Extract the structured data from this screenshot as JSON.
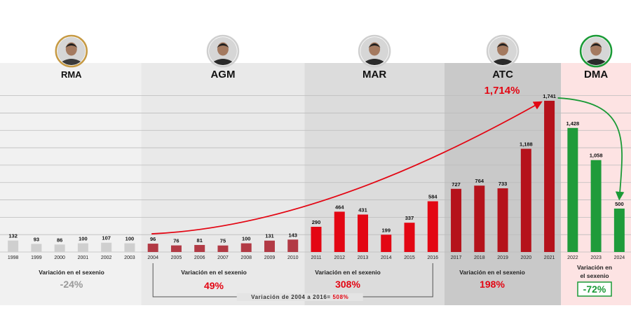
{
  "chart_data": {
    "type": "bar",
    "categories": [
      "1998",
      "1999",
      "2000",
      "2001",
      "2002",
      "2003",
      "2004",
      "2005",
      "2006",
      "2007",
      "2008",
      "2009",
      "2010",
      "2011",
      "2012",
      "2013",
      "2014",
      "2015",
      "2016",
      "2017",
      "2018",
      "2019",
      "2020",
      "2021",
      "2022",
      "2023",
      "2024"
    ],
    "values": [
      132,
      93,
      86,
      100,
      107,
      100,
      96,
      76,
      81,
      75,
      100,
      131,
      143,
      290,
      464,
      431,
      199,
      337,
      584,
      727,
      764,
      733,
      1188,
      1741,
      1428,
      1058,
      500
    ],
    "value_labels": [
      "132",
      "93",
      "86",
      "100",
      "107",
      "100",
      "96",
      "76",
      "81",
      "75",
      "100",
      "131",
      "143",
      "290",
      "464",
      "431",
      "199",
      "337",
      "584",
      "727",
      "764",
      "733",
      "1,188",
      "1,741",
      "1,428",
      "1,058",
      "500"
    ],
    "ylim": [
      0,
      1950
    ],
    "grid": true,
    "periods": [
      {
        "name": "RMA",
        "first_year": "1998",
        "last_year": "2003",
        "caption": "Variación en el sexenio",
        "variation": "-24%",
        "variation_color": "#999999",
        "band_color": "#f1f1f1",
        "bar_color": "#cfcfcf"
      },
      {
        "name": "AGM",
        "first_year": "2004",
        "last_year": "2010",
        "caption": "Variación en el sexenio",
        "variation": "49%",
        "variation_color": "#e30613",
        "band_color": "#e9e9e9",
        "bar_color": "#b23a45"
      },
      {
        "name": "MAR",
        "first_year": "2011",
        "last_year": "2016",
        "caption": "Variación en el sexenio",
        "variation": "308%",
        "variation_color": "#e30613",
        "band_color": "#dcdcdc",
        "bar_color": "#e30613"
      },
      {
        "name": "ATC",
        "first_year": "2017",
        "last_year": "2021",
        "caption": "Variación en el sexenio",
        "variation": "198%",
        "variation_color": "#e30613",
        "band_color": "#c9c9c9",
        "bar_color": "#b5121b"
      },
      {
        "name": "DMA",
        "first_year": "2022",
        "last_year": "2024",
        "caption": "Variación en el sexenio",
        "variation": "-72%",
        "variation_color": "#1a9a36",
        "band_color": "#fde3e3",
        "bar_color": "#1f9b3a"
      }
    ],
    "annotations": {
      "rise_percent": "1,714%",
      "rise_color": "#e30613",
      "fall_color": "#1a9a36",
      "range_note_prefix": "Variación de 2004 a 2016=",
      "range_note_value": "508%"
    }
  }
}
